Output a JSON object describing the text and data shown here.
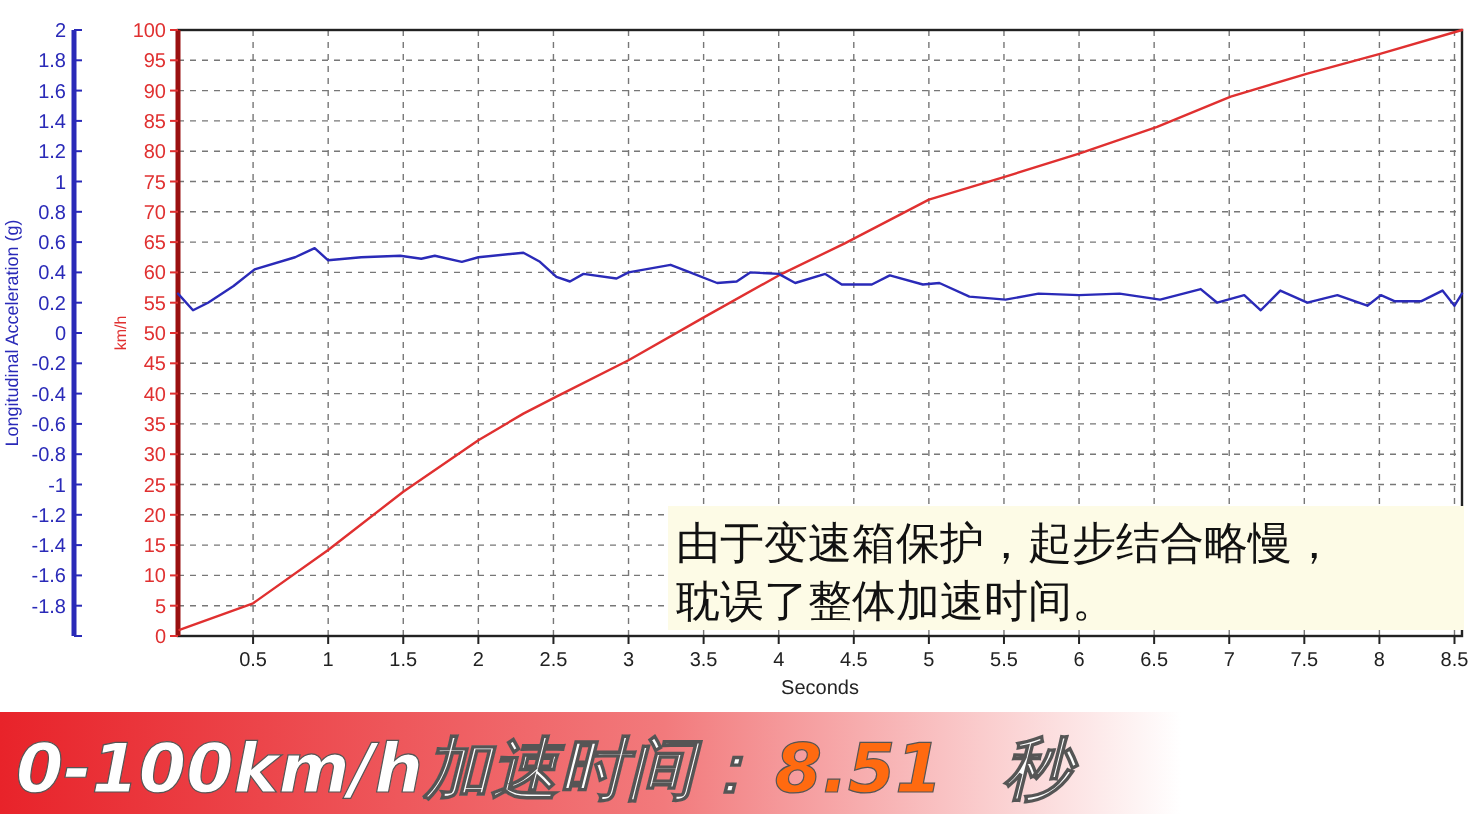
{
  "chart_data": {
    "type": "line",
    "xlabel": "Seconds",
    "ylabel": "km/h",
    "y2label": "Longitudinal Acceleration (g)",
    "x": [
      0.01,
      0.5,
      1.0,
      1.5,
      2.0,
      2.3,
      2.52,
      3.0,
      3.51,
      4.0,
      4.44,
      5.0,
      5.51,
      6.0,
      6.52,
      7.01,
      7.52,
      8.01,
      8.55
    ],
    "series": [
      {
        "color": "#e03030",
        "values": [
          1,
          5.4,
          14.2,
          23.8,
          32.3,
          36.7,
          39.5,
          45.5,
          52.7,
          59.5,
          64.8,
          72,
          75.8,
          79.6,
          84,
          89,
          92.8,
          96.1,
          100
        ]
      },
      {
        "color": "#2a2ab8",
        "axis": "y2",
        "x": [
          0,
          0.1,
          0.2,
          0.37,
          0.51,
          0.78,
          0.91,
          1.0,
          1.22,
          1.48,
          1.62,
          1.71,
          1.89,
          2.0,
          2.3,
          2.41,
          2.52,
          2.61,
          2.7,
          2.92,
          3.0,
          3.28,
          3.41,
          3.59,
          3.72,
          3.81,
          4.0,
          4.11,
          4.31,
          4.42,
          4.62,
          4.74,
          4.96,
          5.07,
          5.27,
          5.51,
          5.73,
          6.0,
          6.27,
          6.54,
          6.81,
          6.92,
          7.1,
          7.21,
          7.34,
          7.52,
          7.72,
          7.92,
          8.01,
          8.1,
          8.28,
          8.42,
          8.5,
          8.55
        ],
        "values": [
          0.26,
          0.15,
          0.2,
          0.31,
          0.42,
          0.5,
          0.56,
          0.48,
          0.5,
          0.51,
          0.49,
          0.51,
          0.47,
          0.5,
          0.53,
          0.47,
          0.37,
          0.34,
          0.39,
          0.36,
          0.4,
          0.45,
          0.4,
          0.33,
          0.34,
          0.4,
          0.39,
          0.33,
          0.39,
          0.32,
          0.32,
          0.38,
          0.32,
          0.33,
          0.24,
          0.22,
          0.26,
          0.25,
          0.26,
          0.22,
          0.29,
          0.2,
          0.25,
          0.15,
          0.28,
          0.2,
          0.25,
          0.18,
          0.25,
          0.21,
          0.21,
          0.28,
          0.18,
          0.26
        ]
      }
    ],
    "xlim": [
      0,
      8.55
    ],
    "xticks": [
      0.5,
      1,
      1.5,
      2,
      2.5,
      3,
      3.5,
      4,
      4.5,
      5,
      5.5,
      6,
      6.5,
      7,
      7.5,
      8,
      8.5
    ],
    "ylim": [
      0,
      100
    ],
    "yticks": [
      0,
      5,
      10,
      15,
      20,
      25,
      30,
      35,
      40,
      45,
      50,
      55,
      60,
      65,
      70,
      75,
      80,
      85,
      90,
      95,
      100
    ],
    "y2lim": [
      -2,
      2
    ],
    "y2ticks": [
      {
        "value": -2,
        "label": null
      },
      -1.8,
      -1.6,
      -1.4,
      -1.2,
      -1,
      -0.8,
      -0.6,
      -0.4,
      -0.2,
      0,
      0.2,
      0.4,
      0.6,
      0.8,
      1,
      1.2,
      1.4,
      1.6,
      1.8,
      2
    ],
    "grid": true,
    "line_style": "solid",
    "annotations": [
      "由于变速箱保护，起步结合略慢，",
      "耽误了整体加速时间。",
      "0-100km/h加速时间：",
      "8.51",
      "秒"
    ]
  }
}
